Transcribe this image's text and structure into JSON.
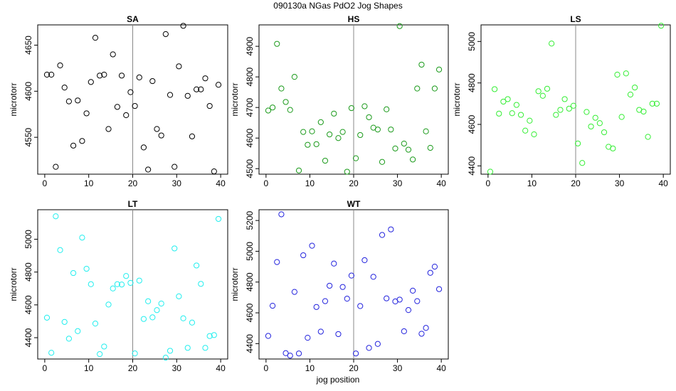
{
  "title": "090130a   NGas PdO2 Jog Shapes",
  "xlabel": "jog position",
  "colors": {
    "SA": "#000000",
    "HS": "#1a9a1a",
    "LS": "#33ee33",
    "LT": "#22eeee",
    "WT": "#2222dd",
    "divider": "#888888"
  },
  "chart_data": [
    {
      "type": "scatter",
      "title": "SA",
      "ylabel": "microtorr",
      "xlim": [
        0,
        40
      ],
      "ylim": [
        4510,
        4672
      ],
      "xticks": [
        0,
        10,
        20,
        30,
        40
      ],
      "yticks": [
        4550,
        4600,
        4650
      ],
      "vline": 20,
      "series": [
        {
          "color": "#000000",
          "points": [
            [
              0.5,
              4618
            ],
            [
              1.5,
              4618
            ],
            [
              2.5,
              4518
            ],
            [
              3.5,
              4628
            ],
            [
              4.5,
              4604
            ],
            [
              5.5,
              4589
            ],
            [
              6.5,
              4541
            ],
            [
              7.5,
              4590
            ],
            [
              8.5,
              4546
            ],
            [
              9.5,
              4576
            ],
            [
              10.5,
              4610
            ],
            [
              11.5,
              4658
            ],
            [
              12.5,
              4617
            ],
            [
              13.5,
              4618
            ],
            [
              14.5,
              4559
            ],
            [
              15.5,
              4640
            ],
            [
              16.5,
              4583
            ],
            [
              17.5,
              4617
            ],
            [
              18.5,
              4574
            ],
            [
              19.5,
              4599
            ],
            [
              20.5,
              4584
            ],
            [
              21.5,
              4615
            ],
            [
              22.5,
              4539
            ],
            [
              23.5,
              4515
            ],
            [
              24.5,
              4611
            ],
            [
              25.5,
              4559
            ],
            [
              26.5,
              4552
            ],
            [
              27.5,
              4662
            ],
            [
              28.5,
              4596
            ],
            [
              29.5,
              4518
            ],
            [
              30.5,
              4627
            ],
            [
              31.5,
              4671
            ],
            [
              32.5,
              4595
            ],
            [
              33.5,
              4551
            ],
            [
              34.5,
              4602
            ],
            [
              35.5,
              4602
            ],
            [
              36.5,
              4614
            ],
            [
              37.5,
              4584
            ],
            [
              38.5,
              4513
            ],
            [
              39.5,
              4607
            ]
          ]
        }
      ]
    },
    {
      "type": "scatter",
      "title": "HS",
      "ylabel": "microtorr",
      "xlim": [
        0,
        40
      ],
      "ylim": [
        4482,
        4970
      ],
      "xticks": [
        0,
        10,
        20,
        30,
        40
      ],
      "yticks": [
        4500,
        4600,
        4700,
        4800,
        4900
      ],
      "vline": 20,
      "series": [
        {
          "color": "#1a9a1a",
          "points": [
            [
              0.5,
              4690
            ],
            [
              1.5,
              4700
            ],
            [
              2.5,
              4908
            ],
            [
              3.5,
              4762
            ],
            [
              4.5,
              4718
            ],
            [
              5.5,
              4692
            ],
            [
              6.5,
              4800
            ],
            [
              7.5,
              4494
            ],
            [
              8.5,
              4620
            ],
            [
              9.5,
              4578
            ],
            [
              10.5,
              4622
            ],
            [
              11.5,
              4580
            ],
            [
              12.5,
              4652
            ],
            [
              13.5,
              4526
            ],
            [
              14.5,
              4612
            ],
            [
              15.5,
              4680
            ],
            [
              16.5,
              4600
            ],
            [
              17.5,
              4620
            ],
            [
              18.5,
              4490
            ],
            [
              19.5,
              4698
            ],
            [
              20.5,
              4534
            ],
            [
              21.5,
              4610
            ],
            [
              22.5,
              4704
            ],
            [
              23.5,
              4668
            ],
            [
              24.5,
              4634
            ],
            [
              25.5,
              4628
            ],
            [
              26.5,
              4522
            ],
            [
              27.5,
              4694
            ],
            [
              28.5,
              4628
            ],
            [
              29.5,
              4566
            ],
            [
              30.5,
              4966
            ],
            [
              31.5,
              4582
            ],
            [
              32.5,
              4562
            ],
            [
              33.5,
              4530
            ],
            [
              34.5,
              4762
            ],
            [
              35.5,
              4840
            ],
            [
              36.5,
              4622
            ],
            [
              37.5,
              4568
            ],
            [
              38.5,
              4762
            ],
            [
              39.5,
              4824
            ]
          ]
        }
      ]
    },
    {
      "type": "scatter",
      "title": "LS",
      "ylabel": "microtorr",
      "xlim": [
        0,
        40
      ],
      "ylim": [
        4360,
        5080
      ],
      "xticks": [
        0,
        10,
        20,
        30,
        40
      ],
      "yticks": [
        4400,
        4600,
        4800,
        5000
      ],
      "vline": 20,
      "series": [
        {
          "color": "#33ee33",
          "points": [
            [
              0.5,
              4372
            ],
            [
              1.5,
              4770
            ],
            [
              2.5,
              4652
            ],
            [
              3.5,
              4710
            ],
            [
              4.5,
              4722
            ],
            [
              5.5,
              4654
            ],
            [
              6.5,
              4694
            ],
            [
              7.5,
              4646
            ],
            [
              8.5,
              4570
            ],
            [
              9.5,
              4618
            ],
            [
              10.5,
              4552
            ],
            [
              11.5,
              4760
            ],
            [
              12.5,
              4738
            ],
            [
              13.5,
              4772
            ],
            [
              14.5,
              4990
            ],
            [
              15.5,
              4646
            ],
            [
              16.5,
              4670
            ],
            [
              17.5,
              4722
            ],
            [
              18.5,
              4676
            ],
            [
              19.5,
              4690
            ],
            [
              20.5,
              4508
            ],
            [
              21.5,
              4414
            ],
            [
              22.5,
              4660
            ],
            [
              23.5,
              4590
            ],
            [
              24.5,
              4632
            ],
            [
              25.5,
              4606
            ],
            [
              26.5,
              4562
            ],
            [
              27.5,
              4492
            ],
            [
              28.5,
              4484
            ],
            [
              29.5,
              4840
            ],
            [
              30.5,
              4636
            ],
            [
              31.5,
              4846
            ],
            [
              32.5,
              4744
            ],
            [
              33.5,
              4778
            ],
            [
              34.5,
              4670
            ],
            [
              35.5,
              4662
            ],
            [
              36.5,
              4540
            ],
            [
              37.5,
              4700
            ],
            [
              38.5,
              4700
            ],
            [
              39.5,
              5076
            ]
          ]
        }
      ]
    },
    {
      "type": "scatter",
      "title": "LT",
      "ylabel": "microtorr",
      "xlim": [
        0,
        40
      ],
      "ylim": [
        4270,
        5180
      ],
      "xticks": [
        0,
        10,
        20,
        30,
        40
      ],
      "yticks": [
        4400,
        4600,
        4800,
        5000
      ],
      "vline": 20,
      "series": [
        {
          "color": "#22eeee",
          "points": [
            [
              0.5,
              4522
            ],
            [
              1.5,
              4308
            ],
            [
              2.5,
              5140
            ],
            [
              3.5,
              4934
            ],
            [
              4.5,
              4496
            ],
            [
              5.5,
              4394
            ],
            [
              6.5,
              4794
            ],
            [
              7.5,
              4440
            ],
            [
              8.5,
              5010
            ],
            [
              9.5,
              4820
            ],
            [
              10.5,
              4726
            ],
            [
              11.5,
              4486
            ],
            [
              12.5,
              4300
            ],
            [
              13.5,
              4346
            ],
            [
              14.5,
              4602
            ],
            [
              15.5,
              4700
            ],
            [
              16.5,
              4726
            ],
            [
              17.5,
              4724
            ],
            [
              18.5,
              4776
            ],
            [
              19.5,
              4734
            ],
            [
              20.5,
              4304
            ],
            [
              21.5,
              4748
            ],
            [
              22.5,
              4514
            ],
            [
              23.5,
              4622
            ],
            [
              24.5,
              4524
            ],
            [
              25.5,
              4568
            ],
            [
              26.5,
              4608
            ],
            [
              27.5,
              4278
            ],
            [
              28.5,
              4320
            ],
            [
              29.5,
              4944
            ],
            [
              30.5,
              4652
            ],
            [
              31.5,
              4518
            ],
            [
              32.5,
              4338
            ],
            [
              33.5,
              4492
            ],
            [
              34.5,
              4840
            ],
            [
              35.5,
              4728
            ],
            [
              36.5,
              4338
            ],
            [
              37.5,
              4410
            ],
            [
              38.5,
              4416
            ],
            [
              39.5,
              5124
            ]
          ]
        }
      ]
    },
    {
      "type": "scatter",
      "title": "WT",
      "ylabel": "microtorr",
      "xlim": [
        0,
        40
      ],
      "ylim": [
        4300,
        5270
      ],
      "xticks": [
        0,
        10,
        20,
        30,
        40
      ],
      "yticks": [
        4400,
        4600,
        4800,
        5000,
        5200
      ],
      "vline": 20,
      "series": [
        {
          "color": "#2222dd",
          "points": [
            [
              0.5,
              4450
            ],
            [
              1.5,
              4646
            ],
            [
              2.5,
              4930
            ],
            [
              3.5,
              5240
            ],
            [
              4.5,
              4338
            ],
            [
              5.5,
              4322
            ],
            [
              6.5,
              4736
            ],
            [
              7.5,
              4336
            ],
            [
              8.5,
              4974
            ],
            [
              9.5,
              4438
            ],
            [
              10.5,
              5036
            ],
            [
              11.5,
              4638
            ],
            [
              12.5,
              4478
            ],
            [
              13.5,
              4676
            ],
            [
              14.5,
              4776
            ],
            [
              15.5,
              4920
            ],
            [
              16.5,
              4462
            ],
            [
              17.5,
              4768
            ],
            [
              18.5,
              4692
            ],
            [
              19.5,
              4842
            ],
            [
              20.5,
              4336
            ],
            [
              21.5,
              4644
            ],
            [
              22.5,
              4942
            ],
            [
              23.5,
              4372
            ],
            [
              24.5,
              4834
            ],
            [
              25.5,
              4398
            ],
            [
              26.5,
              5106
            ],
            [
              27.5,
              4694
            ],
            [
              28.5,
              5142
            ],
            [
              29.5,
              4674
            ],
            [
              30.5,
              4686
            ],
            [
              31.5,
              4480
            ],
            [
              32.5,
              4618
            ],
            [
              33.5,
              4744
            ],
            [
              34.5,
              4676
            ],
            [
              35.5,
              4464
            ],
            [
              36.5,
              4502
            ],
            [
              37.5,
              4860
            ],
            [
              38.5,
              4900
            ],
            [
              39.5,
              4754
            ]
          ]
        }
      ]
    }
  ]
}
